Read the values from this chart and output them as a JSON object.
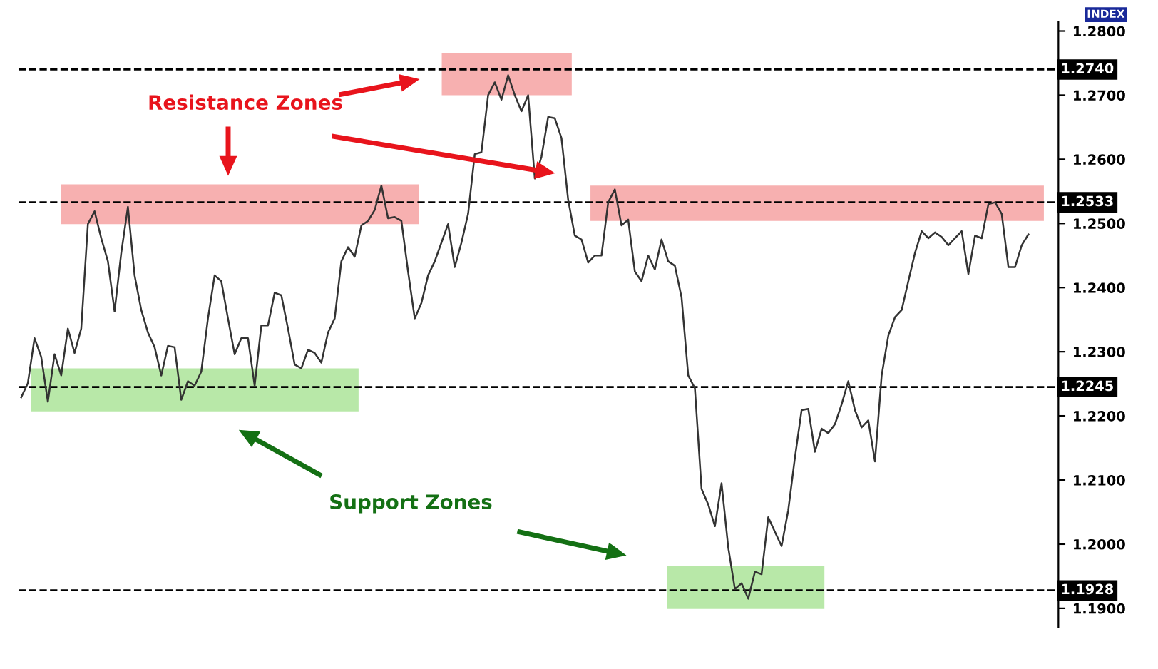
{
  "chart_data": {
    "type": "line",
    "categories": [
      null,
      null,
      null,
      null,
      null,
      null,
      null,
      null,
      null,
      null,
      null,
      null,
      null,
      null,
      null,
      null,
      null,
      null,
      null,
      null,
      null,
      null,
      null,
      null,
      null,
      null,
      null,
      null,
      null,
      null,
      null,
      null,
      null,
      null,
      null,
      null,
      null,
      null,
      null,
      null,
      null,
      null,
      null,
      null,
      null,
      null,
      null,
      null,
      null,
      null,
      null,
      null,
      null,
      null,
      null,
      null,
      null,
      null,
      null,
      null,
      null,
      null,
      null,
      null,
      null,
      null,
      null,
      null,
      null,
      null,
      null,
      null,
      null,
      null,
      null,
      null,
      null,
      null,
      null,
      null,
      null,
      null,
      null,
      null,
      null,
      null,
      null,
      null,
      null,
      null,
      null,
      null,
      null,
      null,
      null,
      null,
      null,
      null,
      null,
      null,
      null,
      null,
      null,
      null,
      null,
      null,
      null,
      null,
      null,
      null,
      null,
      null,
      null,
      null,
      null,
      null,
      null,
      null,
      null,
      null,
      null,
      null,
      null,
      null,
      null,
      null,
      null,
      null,
      null,
      null,
      null,
      null,
      null,
      null,
      null,
      null,
      null,
      null,
      null,
      null,
      null,
      null,
      null,
      null,
      null,
      null,
      null,
      null,
      null,
      null,
      null,
      null
    ],
    "series": [
      {
        "color": "#333333",
        "values": [
          1.2229,
          1.2251,
          1.2321,
          1.2292,
          1.2222,
          1.2296,
          1.2263,
          1.2336,
          1.2298,
          1.2336,
          1.2499,
          1.2519,
          1.2477,
          1.2441,
          1.2363,
          1.2454,
          1.2526,
          1.2419,
          1.2365,
          1.233,
          1.2307,
          1.2263,
          1.2309,
          1.2307,
          1.2225,
          1.2254,
          1.2247,
          1.2269,
          1.2352,
          1.2419,
          1.241,
          1.2352,
          1.2296,
          1.2321,
          1.2321,
          1.2247,
          1.2341,
          1.2341,
          1.2392,
          1.2388,
          1.2336,
          1.228,
          1.2274,
          1.2303,
          1.2298,
          1.2283,
          1.233,
          1.2352,
          1.2441,
          1.2463,
          1.2448,
          1.2497,
          1.2504,
          1.2521,
          1.2559,
          1.2508,
          1.251,
          1.2504,
          1.2425,
          1.2352,
          1.2376,
          1.2419,
          1.2441,
          1.247,
          1.2499,
          1.2432,
          1.247,
          1.2515,
          1.2608,
          1.2611,
          1.27,
          1.272,
          1.2693,
          1.2731,
          1.27,
          1.2675,
          1.27,
          1.257,
          1.2604,
          1.2666,
          1.2664,
          1.2633,
          1.2537,
          1.2481,
          1.2475,
          1.2439,
          1.245,
          1.245,
          1.2533,
          1.2553,
          1.2497,
          1.2506,
          1.2425,
          1.241,
          1.245,
          1.2428,
          1.2475,
          1.2441,
          1.2434,
          1.2385,
          1.2263,
          1.2243,
          1.2086,
          1.2062,
          1.2028,
          1.2095,
          1.1995,
          1.193,
          1.1939,
          1.1915,
          1.1957,
          1.1953,
          1.2042,
          1.2019,
          1.1997,
          1.2053,
          1.2135,
          1.2209,
          1.2211,
          1.2144,
          1.218,
          1.2173,
          1.2187,
          1.2218,
          1.2254,
          1.2209,
          1.2182,
          1.2193,
          1.2129,
          1.2263,
          1.2325,
          1.2354,
          1.2365,
          1.241,
          1.2454,
          1.2488,
          1.2477,
          1.2486,
          1.2479,
          1.2466,
          1.2477,
          1.2488,
          1.2421,
          1.2481,
          1.2477,
          1.253,
          1.2533,
          1.2515,
          1.2432,
          1.2432,
          1.2466,
          1.2483
        ]
      }
    ],
    "ylim": [
      1.187,
      1.2815
    ],
    "yticks": [
      {
        "value": 1.19,
        "label": "1.1900"
      },
      {
        "value": 1.2,
        "label": "1.2000"
      },
      {
        "value": 1.21,
        "label": "1.2100"
      },
      {
        "value": 1.22,
        "label": "1.2200"
      },
      {
        "value": 1.23,
        "label": "1.2300"
      },
      {
        "value": 1.24,
        "label": "1.2400"
      },
      {
        "value": 1.25,
        "label": "1.2500"
      },
      {
        "value": 1.26,
        "label": "1.2600"
      },
      {
        "value": 1.27,
        "label": "1.2700"
      },
      {
        "value": 1.28,
        "label": "1.2800"
      }
    ],
    "ref_lines": [
      {
        "axis": "y",
        "value": 1.274,
        "label": "1.2740",
        "color": "#000000",
        "line_style": "dashed"
      },
      {
        "axis": "y",
        "value": 1.2533,
        "label": "1.2533",
        "color": "#000000",
        "line_style": "dashed"
      },
      {
        "axis": "y",
        "value": 1.2245,
        "label": "1.2245",
        "color": "#000000",
        "line_style": "dashed"
      },
      {
        "axis": "y",
        "value": 1.1928,
        "label": "1.1928",
        "color": "#000000",
        "line_style": "dashed"
      }
    ],
    "bands": [
      {
        "axis": "y",
        "from": 1.2499,
        "to": 1.2561,
        "color": "#f7b0b0"
      },
      {
        "axis": "y",
        "from": 1.27,
        "to": 1.2765,
        "color": "#f7b0b0"
      },
      {
        "axis": "y",
        "from": 1.2504,
        "to": 1.2559,
        "color": "#f7b0b0"
      },
      {
        "axis": "y",
        "from": 1.2207,
        "to": 1.2274,
        "color": "#b8e8a8"
      },
      {
        "axis": "y",
        "from": 1.1899,
        "to": 1.1966,
        "color": "#b8e8a8"
      }
    ],
    "annotations": [
      "INDEX",
      "Resistance Zones",
      "Support Zones"
    ],
    "tick_labels": "y",
    "grid": false,
    "legend": false,
    "marker": "none",
    "line_style": "solid"
  }
}
